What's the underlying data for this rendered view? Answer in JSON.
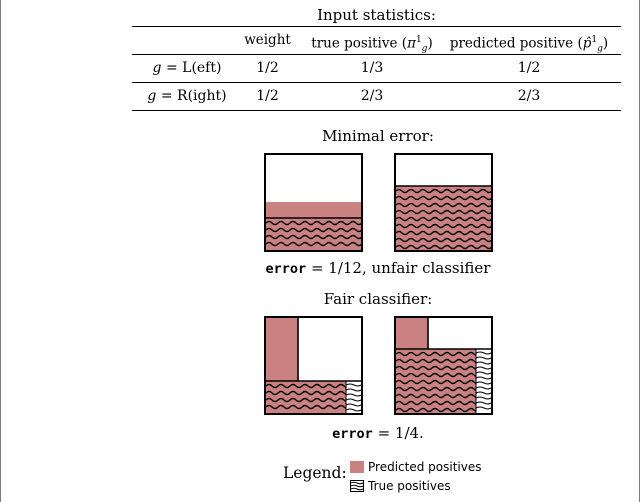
{
  "stats": {
    "caption": "Input statistics:",
    "headers": {
      "weight": "weight",
      "true_positive": "true positive",
      "predicted_positive": "predicted positive"
    },
    "rows": [
      {
        "group_var": "g",
        "group_name": "L(eft)",
        "weight": "1/2",
        "true_positive": "1/3",
        "predicted_positive": "1/2"
      },
      {
        "group_var": "g",
        "group_name": "R(ight)",
        "weight": "1/2",
        "true_positive": "2/3",
        "predicted_positive": "2/3"
      }
    ]
  },
  "minimal_error": {
    "title": "Minimal error:",
    "error_keyword": "error",
    "error_value": "1/12",
    "verdict": "unfair classifier",
    "left_panel": {
      "predicted_positive_fraction": 0.5,
      "true_positive_fraction": 0.333
    },
    "right_panel": {
      "predicted_positive_fraction": 0.667,
      "true_positive_fraction": 0.667
    }
  },
  "fair_classifier": {
    "title": "Fair classifier:",
    "error_keyword": "error",
    "error_value": "1/4.",
    "left_panel": {
      "predicted_positive_fraction": 0.5,
      "true_positive_fraction": 0.333
    },
    "right_panel": {
      "predicted_positive_fraction": 0.5,
      "true_positive_fraction": 0.667
    }
  },
  "legend": {
    "title": "Legend:",
    "predicted_label": "Predicted positives",
    "true_label": "True positives"
  },
  "colors": {
    "predicted_fill": "#c98181",
    "wave_stroke": "#000000",
    "border": "#000000"
  }
}
